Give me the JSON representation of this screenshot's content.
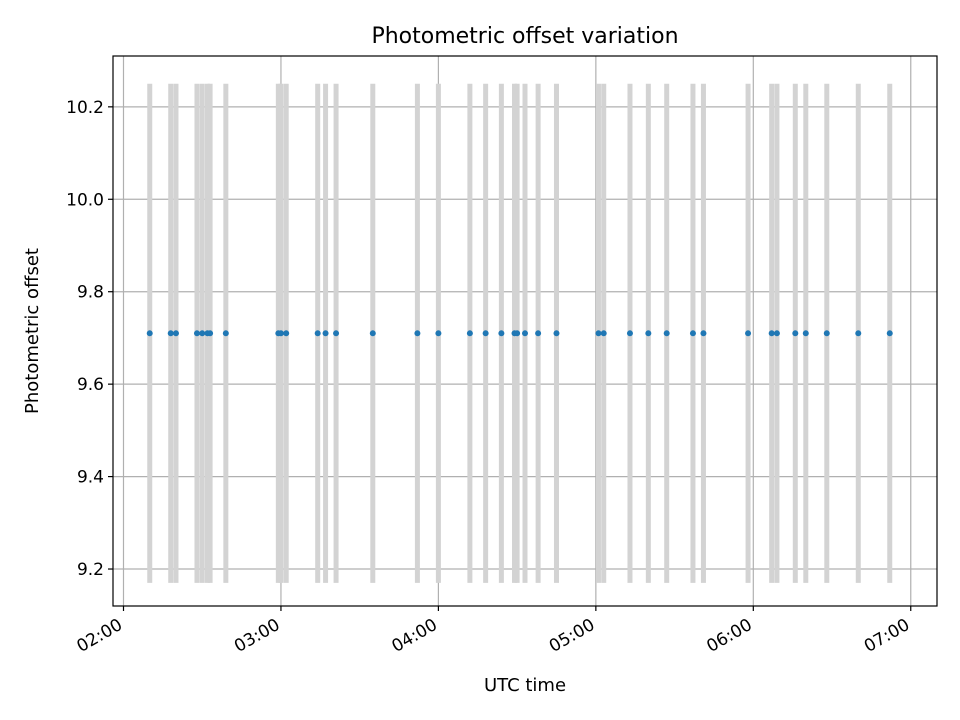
{
  "chart_data": {
    "type": "scatter",
    "title": "Photometric offset variation",
    "xlabel": "UTC time",
    "ylabel": "Photometric offset",
    "x_axis_type": "time",
    "xlim": [
      "01:56",
      "07:10"
    ],
    "ylim": [
      9.12,
      10.31
    ],
    "x_ticks": [
      "02:00",
      "03:00",
      "04:00",
      "05:00",
      "06:00",
      "07:00"
    ],
    "y_ticks": [
      9.2,
      9.4,
      9.6,
      9.8,
      10.0,
      10.2
    ],
    "grid": true,
    "marker_color": "#1f77b4",
    "band_color": "#d3d3d3",
    "band_ylim": [
      9.17,
      10.25
    ],
    "points": [
      {
        "x": "02:10",
        "y": 9.71
      },
      {
        "x": "02:18",
        "y": 9.71
      },
      {
        "x": "02:20",
        "y": 9.71
      },
      {
        "x": "02:28",
        "y": 9.71
      },
      {
        "x": "02:30",
        "y": 9.71
      },
      {
        "x": "02:32",
        "y": 9.71
      },
      {
        "x": "02:33",
        "y": 9.71
      },
      {
        "x": "02:39",
        "y": 9.71
      },
      {
        "x": "02:59",
        "y": 9.71
      },
      {
        "x": "03:00",
        "y": 9.71
      },
      {
        "x": "03:02",
        "y": 9.71
      },
      {
        "x": "03:14",
        "y": 9.71
      },
      {
        "x": "03:17",
        "y": 9.71
      },
      {
        "x": "03:21",
        "y": 9.71
      },
      {
        "x": "03:35",
        "y": 9.71
      },
      {
        "x": "03:52",
        "y": 9.71
      },
      {
        "x": "04:00",
        "y": 9.71
      },
      {
        "x": "04:12",
        "y": 9.71
      },
      {
        "x": "04:18",
        "y": 9.71
      },
      {
        "x": "04:24",
        "y": 9.71
      },
      {
        "x": "04:29",
        "y": 9.71
      },
      {
        "x": "04:30",
        "y": 9.71
      },
      {
        "x": "04:33",
        "y": 9.71
      },
      {
        "x": "04:38",
        "y": 9.71
      },
      {
        "x": "04:45",
        "y": 9.71
      },
      {
        "x": "05:01",
        "y": 9.71
      },
      {
        "x": "05:03",
        "y": 9.71
      },
      {
        "x": "05:13",
        "y": 9.71
      },
      {
        "x": "05:20",
        "y": 9.71
      },
      {
        "x": "05:27",
        "y": 9.71
      },
      {
        "x": "05:37",
        "y": 9.71
      },
      {
        "x": "05:41",
        "y": 9.71
      },
      {
        "x": "05:58",
        "y": 9.71
      },
      {
        "x": "06:07",
        "y": 9.71
      },
      {
        "x": "06:09",
        "y": 9.71
      },
      {
        "x": "06:16",
        "y": 9.71
      },
      {
        "x": "06:20",
        "y": 9.71
      },
      {
        "x": "06:28",
        "y": 9.71
      },
      {
        "x": "06:40",
        "y": 9.71
      },
      {
        "x": "06:52",
        "y": 9.71
      }
    ]
  }
}
